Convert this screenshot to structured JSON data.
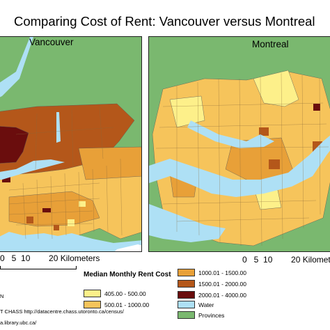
{
  "title": "Comparing Cost of Rent: Vancouver versus Montreal",
  "panels": {
    "vancouver": {
      "label": "Vancouver"
    },
    "montreal": {
      "label": "Montreal"
    }
  },
  "scale_bar": {
    "ticks": "0   5  10        20",
    "units": "Kilometers"
  },
  "legend": {
    "title": "Median Monthly Rent Cost",
    "classes": [
      {
        "label": "405.00 - 500.00",
        "color": "#fdf08a"
      },
      {
        "label": "500.01 - 1000.00",
        "color": "#f6c45b"
      },
      {
        "label": "1000.01 - 1500.00",
        "color": "#e8a038"
      },
      {
        "label": "1500.01 - 2000.00",
        "color": "#b4571a"
      },
      {
        "label": "2000.01 - 4000.00",
        "color": "#6a0d0d"
      },
      {
        "label": "Water",
        "color": "#aee0f5"
      },
      {
        "label": "Provinces",
        "color": "#7ab86f"
      }
    ]
  },
  "source": {
    "line1": "N",
    "line2": "T CHASS http://datacentre.chass.utoronto.ca/census/",
    "line3": "a.library.ubc.ca/"
  }
}
